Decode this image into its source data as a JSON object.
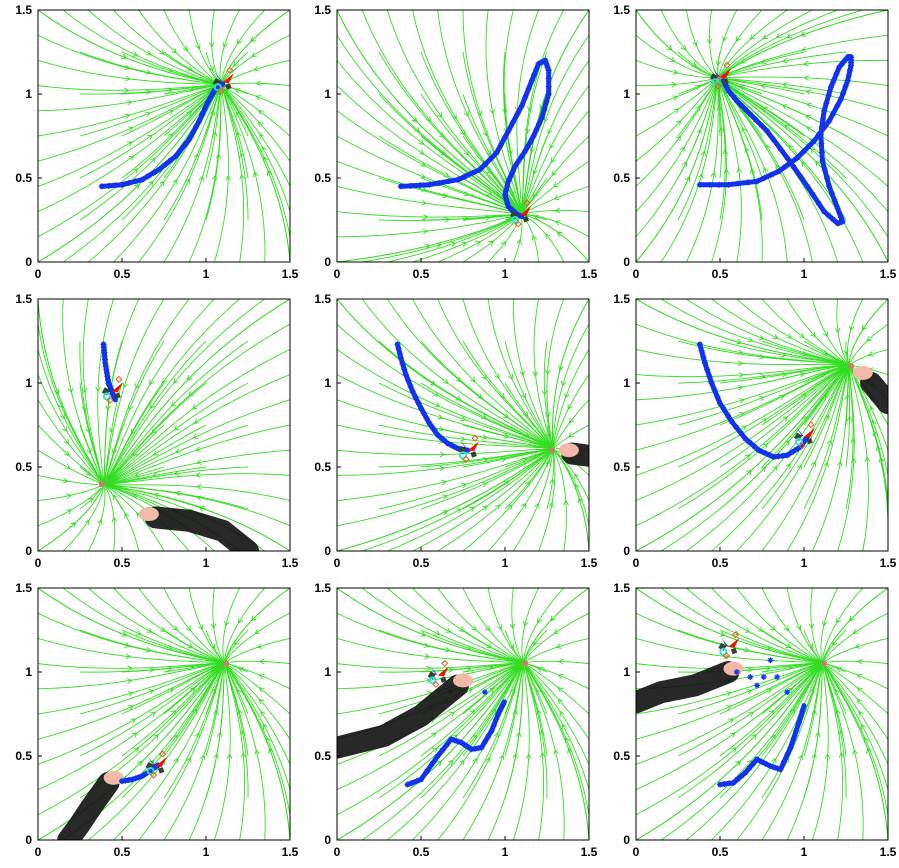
{
  "colors": {
    "streamline": "#33dd22",
    "trajectory": "#1133ee",
    "target": "#bb8866",
    "arrow_red": "#ee1100",
    "arrow_blue": "#1122ee",
    "marker_orange": "#ee5522",
    "robot_cyan": "#33dddd",
    "robot_dark": "#334433",
    "arm": "#111111",
    "hand": "#f2b8a8"
  },
  "chart_data": [
    {
      "type": "line",
      "panel": "1",
      "xlim": [
        0,
        1.5
      ],
      "ylim": [
        0,
        1.5
      ],
      "xticks": [
        "0",
        "0.5",
        "1",
        "1.5"
      ],
      "yticks": [
        "0",
        "0.5",
        "1",
        "1.5"
      ],
      "attractors": [
        [
          1.1,
          1.05
        ]
      ],
      "trajectory": {
        "x": [
          0.38,
          0.5,
          0.62,
          0.72,
          0.82,
          0.9,
          0.96,
          1.01,
          1.05,
          1.08,
          1.1
        ],
        "y": [
          0.45,
          0.46,
          0.49,
          0.55,
          0.63,
          0.73,
          0.84,
          0.95,
          1.02,
          1.05,
          1.06
        ]
      },
      "end_marker": [
        1.1,
        1.07
      ],
      "arm": null
    },
    {
      "type": "line",
      "panel": "2",
      "xlim": [
        0,
        1.5
      ],
      "ylim": [
        0,
        1.5
      ],
      "xticks": [
        "0",
        "0.5",
        "1",
        "1.5"
      ],
      "yticks": [
        "0",
        "0.5",
        "1",
        "1.5"
      ],
      "attractors": [
        [
          1.08,
          0.28
        ]
      ],
      "trajectory": {
        "x": [
          0.38,
          0.55,
          0.72,
          0.85,
          0.95,
          1.02,
          1.1,
          1.16,
          1.2,
          1.24,
          1.26,
          1.26,
          1.22,
          1.17,
          1.12,
          1.06,
          1.02,
          1.0,
          1.02,
          1.06,
          1.1
        ],
        "y": [
          0.45,
          0.46,
          0.49,
          0.55,
          0.65,
          0.78,
          0.93,
          1.08,
          1.18,
          1.2,
          1.14,
          1.0,
          0.86,
          0.75,
          0.66,
          0.57,
          0.48,
          0.4,
          0.33,
          0.29,
          0.27
        ]
      },
      "end_marker": [
        1.09,
        0.28
      ],
      "arm": null
    },
    {
      "type": "line",
      "panel": "3",
      "xlim": [
        0,
        1.5
      ],
      "ylim": [
        0,
        1.5
      ],
      "xticks": [
        "0",
        "0.5",
        "1",
        "1.5"
      ],
      "yticks": [
        "0",
        "0.5",
        "1",
        "1.5"
      ],
      "attractors": [
        [
          0.5,
          1.1
        ]
      ],
      "trajectory": {
        "x": [
          0.38,
          0.55,
          0.72,
          0.85,
          0.96,
          1.06,
          1.15,
          1.22,
          1.26,
          1.28,
          1.28,
          1.26,
          1.21,
          1.16,
          1.12,
          1.1,
          1.11,
          1.15,
          1.2,
          1.23,
          1.2,
          1.12,
          1.02,
          0.9,
          0.78,
          0.68,
          0.6,
          0.55,
          0.52
        ],
        "y": [
          0.46,
          0.46,
          0.48,
          0.54,
          0.62,
          0.72,
          0.84,
          0.97,
          1.08,
          1.17,
          1.22,
          1.22,
          1.16,
          1.04,
          0.9,
          0.76,
          0.6,
          0.45,
          0.32,
          0.24,
          0.23,
          0.3,
          0.45,
          0.62,
          0.78,
          0.88,
          0.96,
          1.02,
          1.08
        ]
      },
      "end_marker": [
        0.5,
        1.1
      ],
      "arm": null
    },
    {
      "type": "line",
      "panel": "4",
      "xlim": [
        0,
        1.5
      ],
      "ylim": [
        0,
        1.5
      ],
      "xticks": [
        "0",
        "0.5",
        "1",
        "1.5"
      ],
      "yticks": [
        "0",
        "0.5",
        "1",
        "1.5"
      ],
      "attractors": [
        [
          0.38,
          0.4
        ]
      ],
      "trajectory": {
        "x": [
          0.39,
          0.395,
          0.4,
          0.41,
          0.42,
          0.44,
          0.46
        ],
        "y": [
          1.23,
          1.18,
          1.12,
          1.06,
          1.0,
          0.95,
          0.9
        ]
      },
      "end_marker": [
        0.44,
        0.95
      ],
      "arm": {
        "points": [
          [
            0.7,
            0.2
          ],
          [
            0.9,
            0.18
          ],
          [
            1.1,
            0.12
          ],
          [
            1.25,
            0.0
          ]
        ],
        "hand": [
          0.66,
          0.22
        ]
      }
    },
    {
      "type": "line",
      "panel": "5",
      "xlim": [
        0,
        1.5
      ],
      "ylim": [
        0,
        1.5
      ],
      "xticks": [
        "0",
        "0.5",
        "1",
        "1.5"
      ],
      "yticks": [
        "0",
        "0.5",
        "1",
        "1.5"
      ],
      "attractors": [
        [
          1.28,
          0.6
        ]
      ],
      "trajectory": {
        "x": [
          0.36,
          0.38,
          0.41,
          0.45,
          0.5,
          0.55,
          0.6,
          0.66,
          0.72,
          0.78
        ],
        "y": [
          1.23,
          1.15,
          1.05,
          0.95,
          0.85,
          0.76,
          0.69,
          0.64,
          0.61,
          0.6
        ]
      },
      "end_marker": [
        0.78,
        0.6
      ],
      "arm": {
        "points": [
          [
            1.4,
            0.58
          ],
          [
            1.55,
            0.56
          ]
        ],
        "hand": [
          1.38,
          0.6
        ]
      }
    },
    {
      "type": "line",
      "panel": "6",
      "xlim": [
        0,
        1.5
      ],
      "ylim": [
        0,
        1.5
      ],
      "xticks": [
        "0",
        "0.5",
        "1",
        "1.5"
      ],
      "yticks": [
        "0",
        "0.5",
        "1",
        "1.5"
      ],
      "attractors": [
        [
          1.28,
          1.1
        ]
      ],
      "trajectory": {
        "x": [
          0.38,
          0.41,
          0.45,
          0.5,
          0.57,
          0.65,
          0.73,
          0.82,
          0.9,
          0.98,
          1.02
        ],
        "y": [
          1.23,
          1.12,
          1.0,
          0.88,
          0.77,
          0.67,
          0.6,
          0.56,
          0.57,
          0.62,
          0.68
        ]
      },
      "end_marker": [
        1.0,
        0.68
      ],
      "arm": {
        "points": [
          [
            1.4,
            1.0
          ],
          [
            1.5,
            0.88
          ]
        ],
        "hand": [
          1.35,
          1.06
        ]
      }
    },
    {
      "type": "line",
      "panel": "7",
      "xlim": [
        0,
        1.5
      ],
      "ylim": [
        0,
        1.5
      ],
      "xticks": [
        "0",
        "0.5",
        "1",
        "1.5"
      ],
      "yticks": [
        "0",
        "0.5",
        "1",
        "1.5"
      ],
      "attractors": [
        [
          1.12,
          1.05
        ]
      ],
      "trajectory": {
        "x": [
          0.5,
          0.56,
          0.62,
          0.68,
          0.72
        ],
        "y": [
          0.35,
          0.36,
          0.38,
          0.42,
          0.45
        ]
      },
      "end_marker": [
        0.7,
        0.44
      ],
      "arm": {
        "points": [
          [
            0.42,
            0.34
          ],
          [
            0.32,
            0.2
          ],
          [
            0.24,
            0.08
          ],
          [
            0.18,
            0.0
          ]
        ],
        "hand": [
          0.45,
          0.37
        ]
      }
    },
    {
      "type": "line",
      "panel": "8",
      "xlim": [
        0,
        1.5
      ],
      "ylim": [
        0,
        1.5
      ],
      "xticks": [
        "0",
        "0.5",
        "1",
        "1.5"
      ],
      "yticks": [
        "0",
        "0.5",
        "1",
        "1.5"
      ],
      "attractors": [
        [
          1.12,
          1.05
        ]
      ],
      "trajectory": {
        "x": [
          0.42,
          0.5,
          0.6,
          0.68,
          0.74,
          0.8,
          0.86,
          0.92,
          0.96,
          1.0
        ],
        "y": [
          0.33,
          0.36,
          0.5,
          0.6,
          0.58,
          0.54,
          0.55,
          0.65,
          0.75,
          0.83
        ]
      },
      "end_marker": [
        0.6,
        0.98
      ],
      "arm": {
        "points": [
          [
            0.72,
            0.92
          ],
          [
            0.5,
            0.74
          ],
          [
            0.28,
            0.62
          ],
          [
            0.0,
            0.55
          ]
        ],
        "hand": [
          0.75,
          0.95
        ]
      },
      "extra_points": [
        [
          0.88,
          0.88
        ]
      ]
    },
    {
      "type": "line",
      "panel": "9",
      "xlim": [
        0,
        1.5
      ],
      "ylim": [
        0,
        1.5
      ],
      "xticks": [
        "0",
        "0.5",
        "1",
        "1.5"
      ],
      "yticks": [
        "0",
        "0.5",
        "1",
        "1.5"
      ],
      "attractors": [
        [
          1.12,
          1.05
        ]
      ],
      "trajectory": {
        "x": [
          0.5,
          0.58,
          0.65,
          0.72,
          0.8,
          0.86,
          0.92,
          0.97,
          1.0
        ],
        "y": [
          0.33,
          0.34,
          0.4,
          0.48,
          0.44,
          0.42,
          0.55,
          0.7,
          0.8
        ]
      },
      "end_marker": [
        0.55,
        1.15
      ],
      "arm": {
        "points": [
          [
            0.55,
            1.0
          ],
          [
            0.35,
            0.92
          ],
          [
            0.15,
            0.88
          ],
          [
            0.0,
            0.82
          ]
        ],
        "hand": [
          0.58,
          1.02
        ]
      },
      "extra_points": [
        [
          0.68,
          0.97
        ],
        [
          0.76,
          0.97
        ],
        [
          0.84,
          0.97
        ],
        [
          0.6,
          1.0
        ],
        [
          0.8,
          1.07
        ],
        [
          0.72,
          0.92
        ],
        [
          0.9,
          0.88
        ]
      ]
    }
  ]
}
